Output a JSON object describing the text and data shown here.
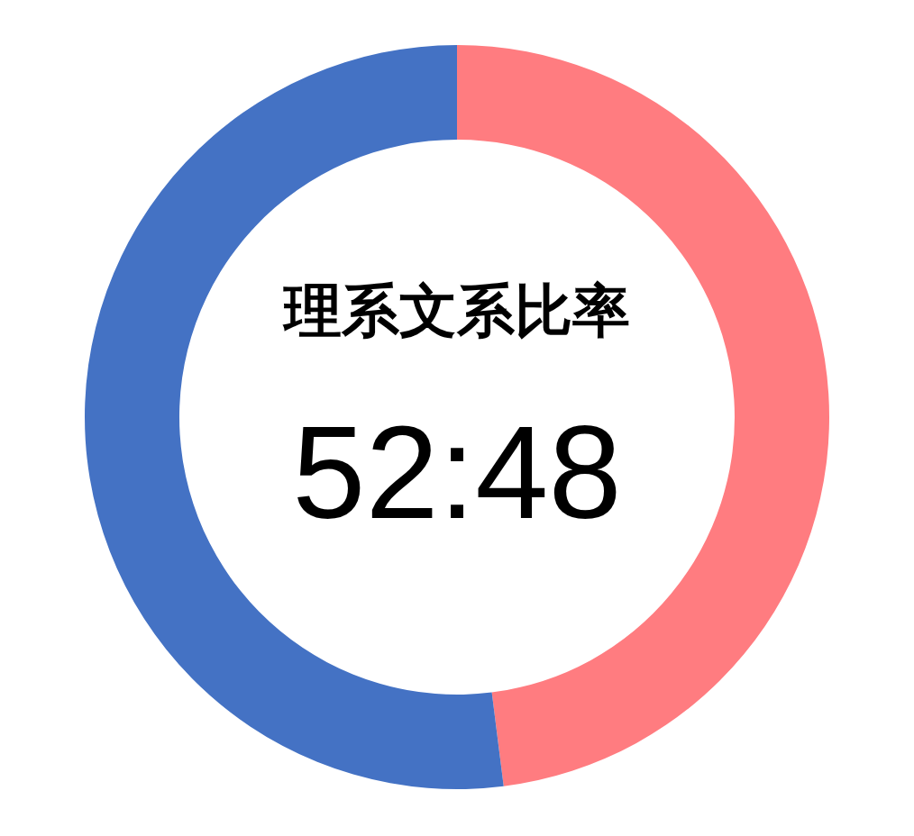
{
  "chart_data": {
    "type": "donut",
    "title": "理系文系比率",
    "annotations": [
      "52:48"
    ],
    "categories": [
      null,
      null
    ],
    "values": [
      48,
      52
    ],
    "colors": [
      "#ff7c80",
      "#4472c4"
    ]
  }
}
